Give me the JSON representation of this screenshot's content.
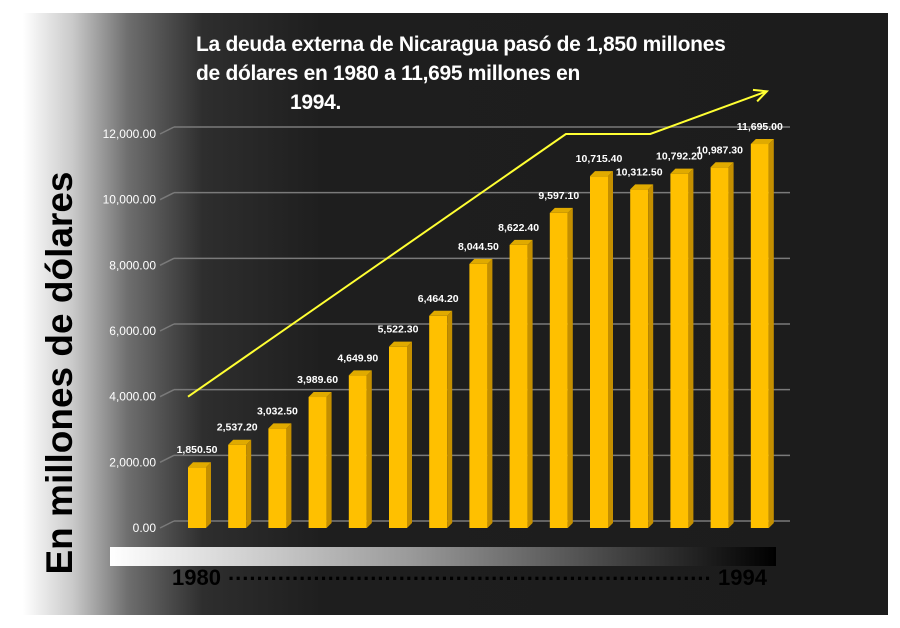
{
  "title_lines": [
    "La deuda externa de Nicaragua pasó de 1,850 millones",
    "de dólares en 1980 a 11,695 millones en",
    "1994."
  ],
  "timeline": {
    "start": "1980",
    "end": "1994",
    "dots": "............................................................................................"
  },
  "colors": {
    "bar": "#ffc000",
    "bar_side": "#c48f00",
    "bar_top": "#e0aa00",
    "arrow": "#ffff33",
    "grid": "#7a7a7a",
    "text": "#ffffff"
  },
  "chart_data": {
    "type": "bar",
    "ylabel": "En millones de dólares",
    "ylim": [
      0,
      12000
    ],
    "y_ticks": [
      "0.00",
      "2,000.00",
      "4,000.00",
      "6,000.00",
      "8,000.00",
      "10,000.00",
      "12,000.00"
    ],
    "y_tick_values": [
      0,
      2000,
      4000,
      6000,
      8000,
      10000,
      12000
    ],
    "grid": true,
    "x_range_labels": [
      "1980",
      "1994"
    ],
    "values": [
      1850.5,
      2537.2,
      3032.5,
      3989.6,
      4649.9,
      5522.3,
      6464.2,
      8044.5,
      8622.4,
      9597.1,
      10715.4,
      10312.5,
      10792.2,
      10987.3,
      11695.0
    ],
    "value_labels": [
      "1,850.50",
      "2,537.20",
      "3,032.50",
      "3,989.60",
      "4,649.90",
      "5,522.30",
      "6,464.20",
      "8,044.50",
      "8,622.40",
      "9,597.10",
      "10,715.40",
      "10,312.50",
      "10,792.20",
      "10,987.30",
      "11,695.00"
    ],
    "trend_arrow": {
      "description_points_y": [
        4000,
        12000,
        12000,
        13300
      ],
      "description_points_bar": [
        0,
        9.4,
        11.5,
        14.4
      ]
    }
  }
}
